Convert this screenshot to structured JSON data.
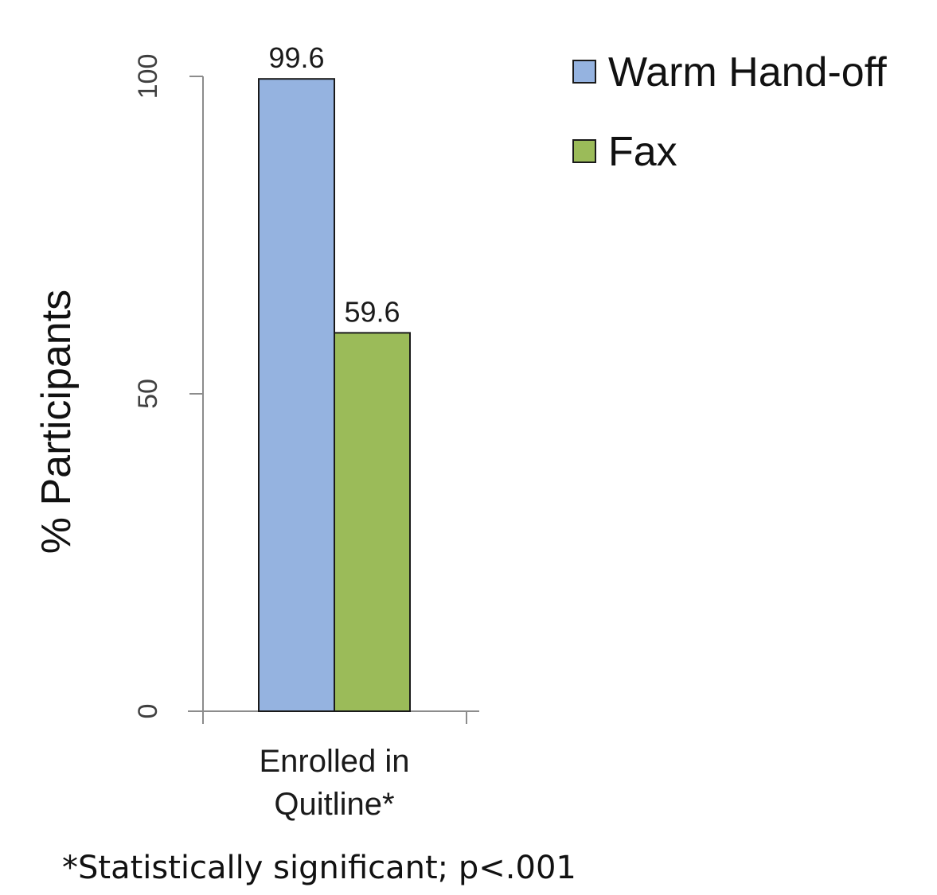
{
  "chart_data": {
    "type": "bar",
    "categories": [
      "Enrolled in Quitline*"
    ],
    "category_lines": [
      [
        "Enrolled in",
        "Quitline*"
      ]
    ],
    "series": [
      {
        "name": "Warm Hand-off",
        "values": [
          99.6
        ],
        "color": "#95B3E0"
      },
      {
        "name": "Fax",
        "values": [
          59.6
        ],
        "color": "#9BBB59"
      }
    ],
    "data_labels": [
      "99.6",
      "59.6"
    ],
    "ylabel": "% Participants",
    "xlabel": "",
    "yticks": [
      0,
      50,
      100
    ],
    "ylim": [
      0,
      100
    ],
    "grid": false,
    "legend_position": "top-right"
  },
  "footnote": "*Statistically significant; p<.001"
}
